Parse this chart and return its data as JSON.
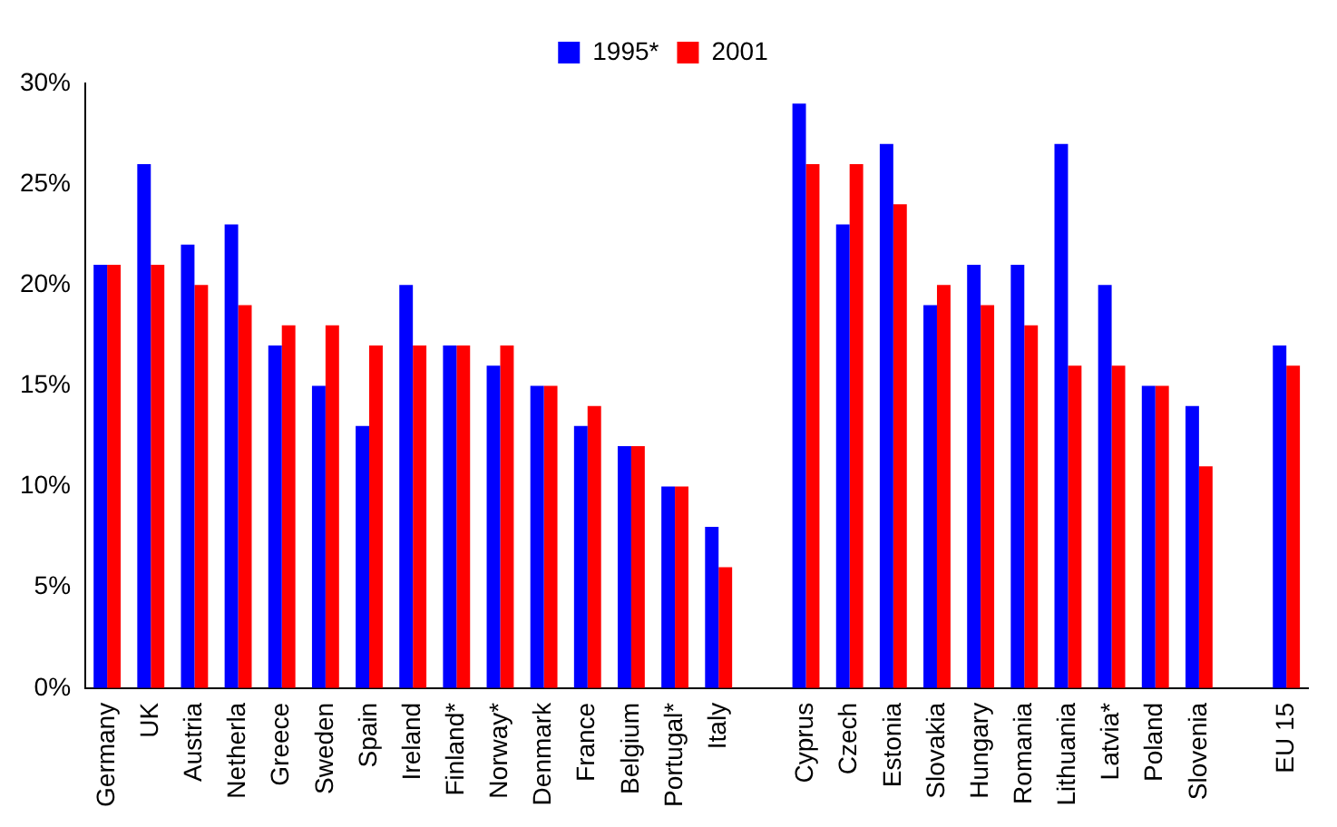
{
  "chart_data": {
    "type": "bar",
    "categories": [
      "Germany",
      "UK",
      "Austria",
      "Netherla",
      "Greece",
      "Sweden",
      "Spain",
      "Ireland",
      "Finland*",
      "Norway*",
      "Denmark",
      "France",
      "Belgium",
      "Portugal*",
      "Italy",
      null,
      "Cyprus",
      "Czech",
      "Estonia",
      "Slovakia",
      "Hungary",
      "Romania",
      "Lithuania",
      "Latvia*",
      "Poland",
      "Slovenia",
      null,
      "EU 15"
    ],
    "series": [
      {
        "name": "1995*",
        "color": "#0000ff",
        "values": [
          21,
          26,
          22,
          23,
          17,
          15,
          13,
          20,
          17,
          16,
          15,
          13,
          12,
          10,
          8,
          null,
          29,
          23,
          27,
          19,
          21,
          21,
          27,
          20,
          15,
          14,
          null,
          17
        ]
      },
      {
        "name": "2001",
        "color": "#ff0000",
        "values": [
          21,
          21,
          20,
          19,
          18,
          18,
          17,
          17,
          17,
          17,
          15,
          14,
          12,
          10,
          6,
          null,
          26,
          26,
          24,
          20,
          19,
          18,
          16,
          16,
          15,
          11,
          null,
          16
        ]
      }
    ],
    "ylim": [
      0,
      30
    ],
    "yticks": [
      {
        "value": 0,
        "label": "0%"
      },
      {
        "value": 5,
        "label": "5%"
      },
      {
        "value": 10,
        "label": "10%"
      },
      {
        "value": 15,
        "label": "15%"
      },
      {
        "value": 20,
        "label": "20%"
      },
      {
        "value": 25,
        "label": "25%"
      },
      {
        "value": 30,
        "label": "30%"
      }
    ],
    "grid": false,
    "legend": "top"
  }
}
